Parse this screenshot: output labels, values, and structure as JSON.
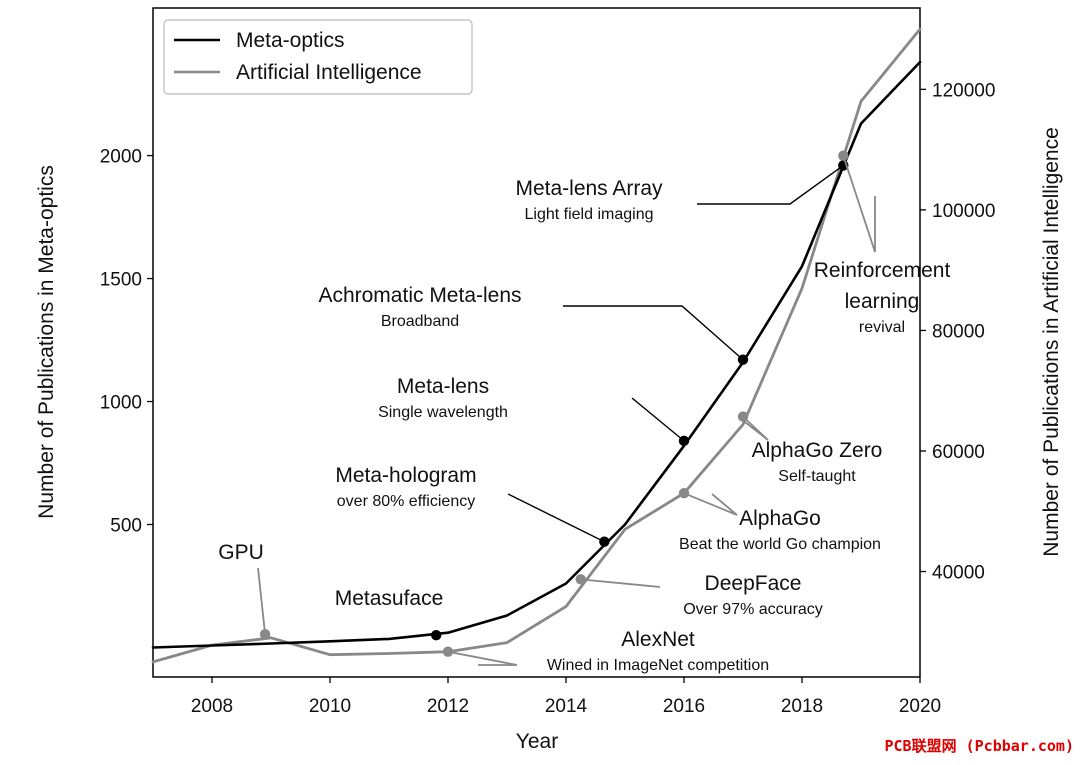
{
  "chart_data": {
    "type": "line",
    "title": "",
    "xlabel": "Year",
    "ylabel_left": "Number of Publications in Meta-optics",
    "ylabel_right": "Number of Publications in Artificial Intelligence",
    "xlim": [
      2007,
      2020
    ],
    "ylim_left": [
      -120,
      2600
    ],
    "ylim_right": [
      22500,
      133500
    ],
    "x_ticks": [
      2008,
      2010,
      2012,
      2014,
      2016,
      2018,
      2020
    ],
    "y_left_ticks": [
      500,
      1000,
      1500,
      2000
    ],
    "y_right_ticks": [
      40000,
      60000,
      80000,
      100000,
      120000
    ],
    "legend_position": "top-left",
    "grid": false,
    "series": [
      {
        "name": "Meta-optics",
        "axis": "left",
        "color": "#000000",
        "x": [
          2007,
          2008,
          2009,
          2010,
          2011,
          2012,
          2013,
          2014,
          2015,
          2016,
          2017,
          2018,
          2019,
          2020
        ],
        "y": [
          0,
          8,
          16,
          25,
          35,
          60,
          130,
          260,
          500,
          820,
          1160,
          1550,
          2130,
          2380
        ]
      },
      {
        "name": "Artificial Intelligence",
        "axis": "right",
        "color": "#888888",
        "x": [
          2007,
          2008,
          2009,
          2010,
          2011,
          2012,
          2013,
          2014,
          2015,
          2016,
          2017,
          2018,
          2019,
          2020
        ],
        "y": [
          25000,
          27800,
          29000,
          26200,
          26400,
          26700,
          28200,
          34200,
          47000,
          53000,
          64400,
          87000,
          118000,
          130000
        ]
      }
    ],
    "annotations": [
      {
        "series": "Meta-optics",
        "x": 2011.8,
        "y": 50,
        "title": "Metasuface",
        "subtitle": ""
      },
      {
        "series": "Meta-optics",
        "x": 2014.65,
        "y": 430,
        "title": "Meta-hologram",
        "subtitle": "over 80% efficiency"
      },
      {
        "series": "Meta-optics",
        "x": 2016.0,
        "y": 840,
        "title": "Meta-lens",
        "subtitle": "Single wavelength"
      },
      {
        "series": "Meta-optics",
        "x": 2017.0,
        "y": 1170,
        "title": "Achromatic Meta-lens",
        "subtitle": "Broadband"
      },
      {
        "series": "Meta-optics",
        "x": 2018.7,
        "y": 1960,
        "title": "Meta-lens Array",
        "subtitle": "Light field imaging"
      },
      {
        "series": "Artificial Intelligence",
        "x": 2008.9,
        "y": 29600,
        "title": "GPU",
        "subtitle": ""
      },
      {
        "series": "Artificial Intelligence",
        "x": 2012.0,
        "y": 26700,
        "title": "AlexNet",
        "subtitle": "Wined in ImageNet competition"
      },
      {
        "series": "Artificial Intelligence",
        "x": 2014.25,
        "y": 38700,
        "title": "DeepFace",
        "subtitle": "Over 97% accuracy"
      },
      {
        "series": "Artificial Intelligence",
        "x": 2016.0,
        "y": 53000,
        "title": "AlphaGo",
        "subtitle": "Beat the world Go champion"
      },
      {
        "series": "Artificial Intelligence",
        "x": 2017.0,
        "y": 65700,
        "title": "AlphaGo Zero",
        "subtitle": "Self-taught"
      },
      {
        "series": "Artificial Intelligence",
        "x": 2018.7,
        "y": 109000,
        "title": "Reinforcement learning",
        "subtitle": "revival"
      }
    ]
  },
  "watermark": "PCB联盟网 (Pcbbar.com)"
}
